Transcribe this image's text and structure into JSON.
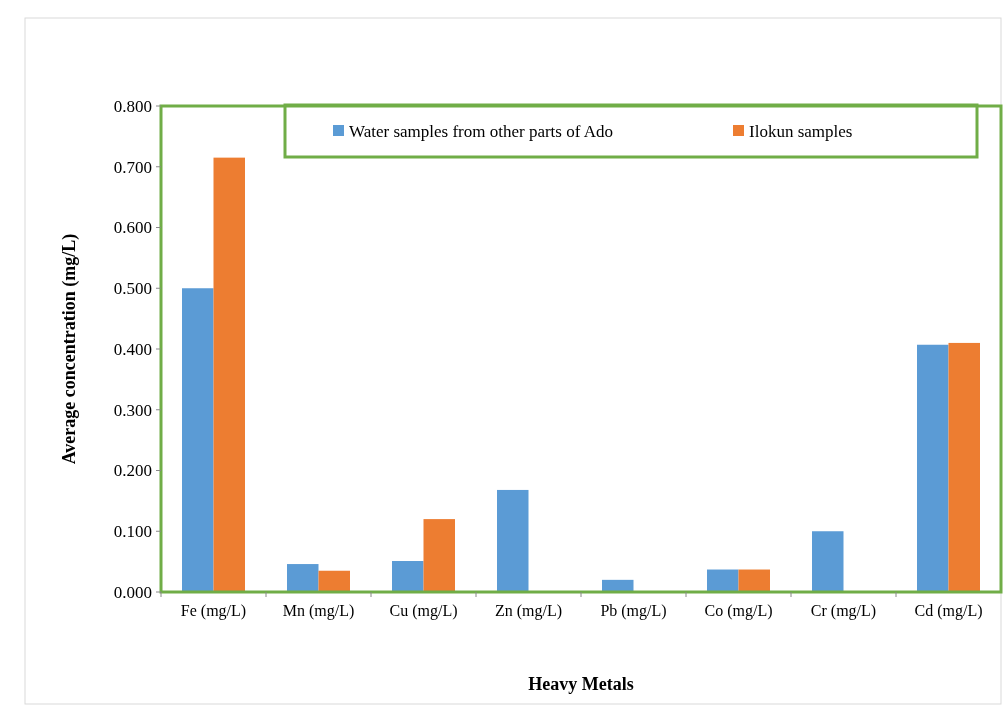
{
  "chart_data": {
    "type": "bar",
    "xlabel": "Heavy Metals",
    "ylabel": "Average concentration (mg/L)",
    "categories": [
      "Fe (mg/L)",
      "Mn (mg/L)",
      "Cu (mg/L)",
      "Zn (mg/L)",
      "Pb (mg/L)",
      "Co (mg/L)",
      "Cr (mg/L)",
      "Cd (mg/L)"
    ],
    "series": [
      {
        "name": "Water samples from other parts of Ado",
        "color": "#5b9bd5",
        "values": [
          0.5,
          0.046,
          0.051,
          0.168,
          0.02,
          0.037,
          0.1,
          0.407
        ]
      },
      {
        "name": "Ilokun samples",
        "color": "#ed7d31",
        "values": [
          0.715,
          0.035,
          0.12,
          0,
          0,
          0.037,
          0,
          0.41
        ]
      }
    ],
    "ylim": [
      0,
      0.8
    ],
    "yticks": [
      {
        "value": 0,
        "label": "0.000"
      },
      {
        "value": 0.1,
        "label": "0.100"
      },
      {
        "value": 0.2,
        "label": "0.200"
      },
      {
        "value": 0.3,
        "label": "0.300"
      },
      {
        "value": 0.4,
        "label": "0.400"
      },
      {
        "value": 0.5,
        "label": "0.500"
      },
      {
        "value": 0.6,
        "label": "0.600"
      },
      {
        "value": 0.7,
        "label": "0.700"
      },
      {
        "value": 0.8,
        "label": "0.800"
      }
    ],
    "grid": false,
    "legend": "top"
  }
}
